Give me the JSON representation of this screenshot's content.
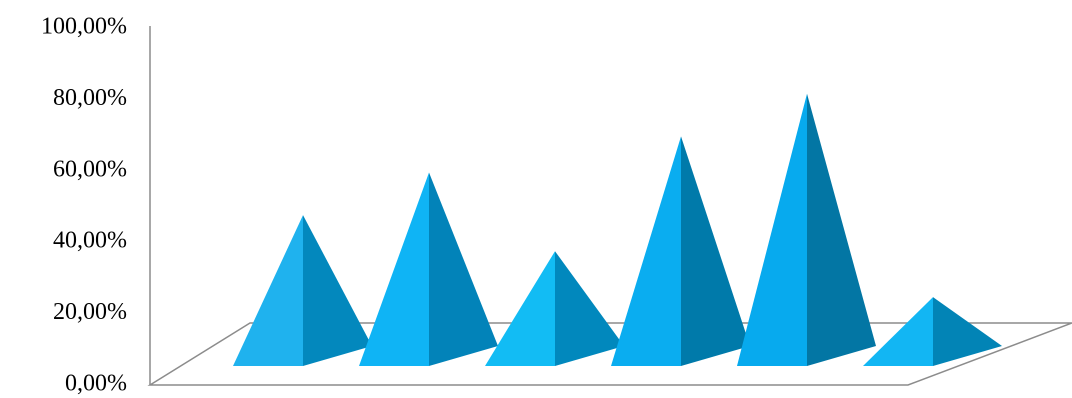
{
  "chart_data": {
    "type": "bar",
    "bar_shape": "pyramid-3d",
    "title": "",
    "xlabel": "",
    "ylabel": "",
    "ylim": [
      0,
      100
    ],
    "y_ticks": [
      "0,00%",
      "20,00%",
      "40,00%",
      "60,00%",
      "80,00%",
      "100,00%"
    ],
    "values": [
      46,
      59,
      35,
      70,
      83,
      21
    ],
    "grid": false,
    "legend": "none",
    "colors": {
      "front": [
        "#1FB2EE",
        "#0FB4F5",
        "#12BCF4",
        "#0AADF0",
        "#07AAEE",
        "#12B6F3"
      ],
      "side": [
        "#0388BD",
        "#0283B9",
        "#0188BD",
        "#007AAA",
        "#0376A4",
        "#0284B6"
      ],
      "axis": "#8C8C8C"
    }
  }
}
